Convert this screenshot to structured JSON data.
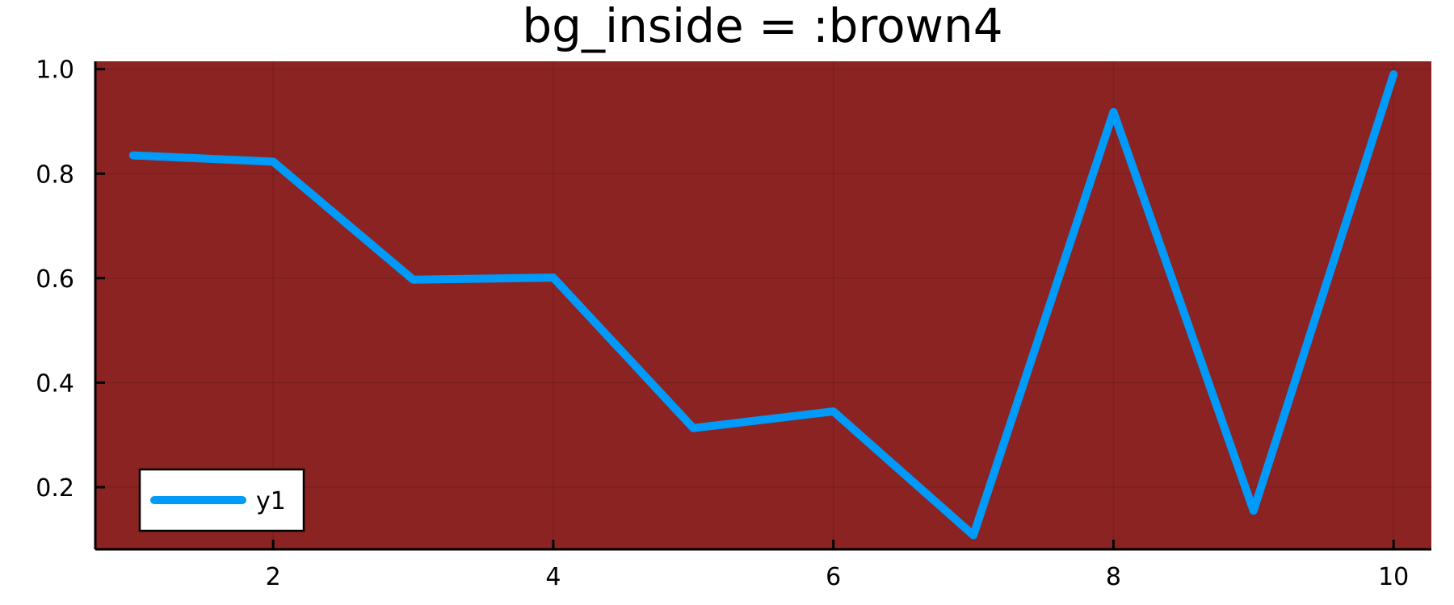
{
  "chart_data": {
    "type": "line",
    "title": "bg_inside = :brown4",
    "x": [
      1,
      2,
      3,
      4,
      5,
      6,
      7,
      8,
      9,
      10
    ],
    "series": [
      {
        "name": "y1",
        "values": [
          0.835,
          0.823,
          0.597,
          0.601,
          0.313,
          0.345,
          0.108,
          0.918,
          0.155,
          0.99
        ],
        "color": "#009af9"
      }
    ],
    "xlim": [
      0.73,
      10.27
    ],
    "ylim": [
      0.081,
      1.015
    ],
    "xticks": [
      2,
      4,
      6,
      8,
      10
    ],
    "xtick_labels": [
      "2",
      "4",
      "6",
      "8",
      "10"
    ],
    "yticks": [
      0.2,
      0.4,
      0.6,
      0.8,
      1.0
    ],
    "ytick_labels": [
      "0.2",
      "0.4",
      "0.6",
      "0.8",
      "1.0"
    ],
    "grid": true,
    "legend_position": "bottom-left",
    "plot_background": "#8b2323",
    "page_background": "#ffffff"
  }
}
